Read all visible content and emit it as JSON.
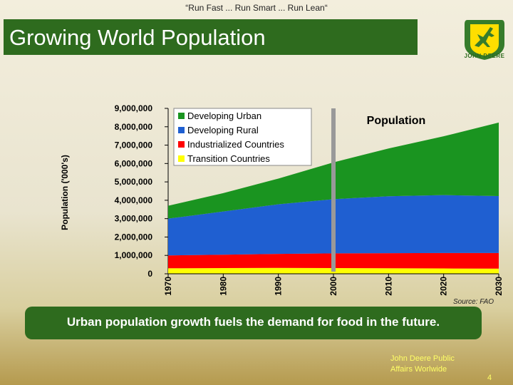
{
  "header": {
    "tagline": "“Run Fast ... Run Smart ... Run Lean“"
  },
  "slide": {
    "title": "Growing World Population"
  },
  "logo": {
    "text": "JOHN DEERE",
    "colors": {
      "green": "#367c2b",
      "yellow": "#ffde00"
    }
  },
  "chart_data": {
    "type": "area",
    "stacked": true,
    "title": "Population",
    "ylabel": "Population ('000's)",
    "xlabel": "",
    "x": [
      1970,
      1980,
      1990,
      2000,
      2010,
      2020,
      2030
    ],
    "x_tick_labels": [
      "1970",
      "1980",
      "1990",
      "2000",
      "2010",
      "2020",
      "2030"
    ],
    "ylim": [
      0,
      9000000
    ],
    "y_tick_labels": [
      "0",
      "1,000,000",
      "2,000,000",
      "3,000,000",
      "4,000,000",
      "5,000,000",
      "6,000,000",
      "7,000,000",
      "8,000,000",
      "9,000,000"
    ],
    "series": [
      {
        "name": "Transition Countries",
        "color": "#ffff00",
        "values": [
          300000,
          310000,
          320000,
          310000,
          300000,
          290000,
          280000
        ]
      },
      {
        "name": "Industrialized Countries",
        "color": "#ff0000",
        "values": [
          700000,
          730000,
          760000,
          800000,
          820000,
          840000,
          850000
        ]
      },
      {
        "name": "Developing Rural",
        "color": "#1f5fd1",
        "values": [
          2000000,
          2350000,
          2700000,
          2950000,
          3100000,
          3150000,
          3100000
        ]
      },
      {
        "name": "Developing Urban",
        "color": "#1a9420",
        "values": [
          700000,
          1000000,
          1400000,
          2000000,
          2600000,
          3200000,
          4000000
        ]
      }
    ],
    "legend_order": [
      "Developing Urban",
      "Developing Rural",
      "Industrialized Countries",
      "Transition Countries"
    ],
    "legend_position": "top-left",
    "marker_line": {
      "x": 2000,
      "color": "#999999"
    },
    "grid": false,
    "source": "Source: FAO"
  },
  "banner": {
    "text": "Urban population growth fuels the demand for food in the future."
  },
  "footer": {
    "line1": "John Deere Public",
    "line2": "Affairs Worlwide",
    "page": "4"
  }
}
